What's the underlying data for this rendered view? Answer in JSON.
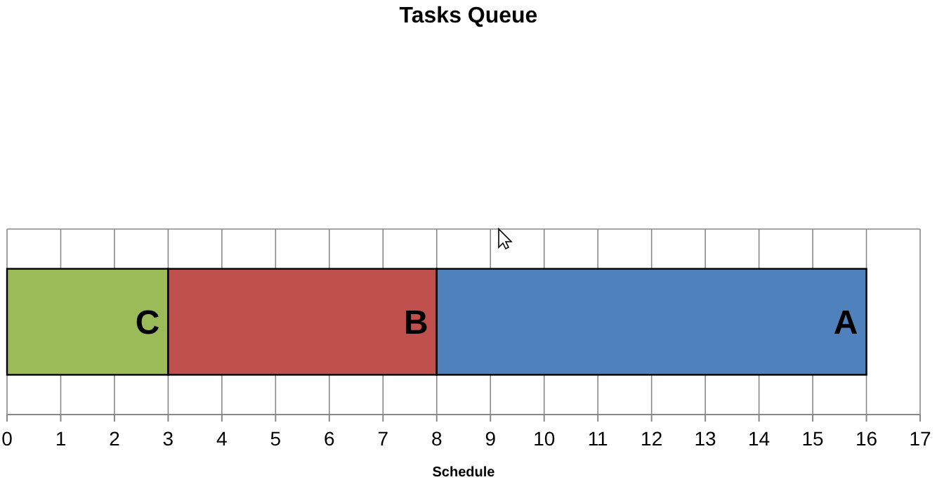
{
  "chart_data": {
    "type": "bar",
    "title": "Tasks Queue",
    "xlabel": "Schedule",
    "orientation": "horizontal",
    "stacked": true,
    "categories": [
      null
    ],
    "series": [
      {
        "name": "C",
        "color": "#9bbb59",
        "values": [
          3
        ]
      },
      {
        "name": "B",
        "color": "#c0504d",
        "values": [
          5
        ]
      },
      {
        "name": "A",
        "color": "#4f81bd",
        "values": [
          8
        ]
      }
    ],
    "xlim": [
      0,
      17
    ],
    "xticks": [
      0,
      1,
      2,
      3,
      4,
      5,
      6,
      7,
      8,
      9,
      10,
      11,
      12,
      13,
      14,
      15,
      16,
      17
    ],
    "grid": "x"
  }
}
